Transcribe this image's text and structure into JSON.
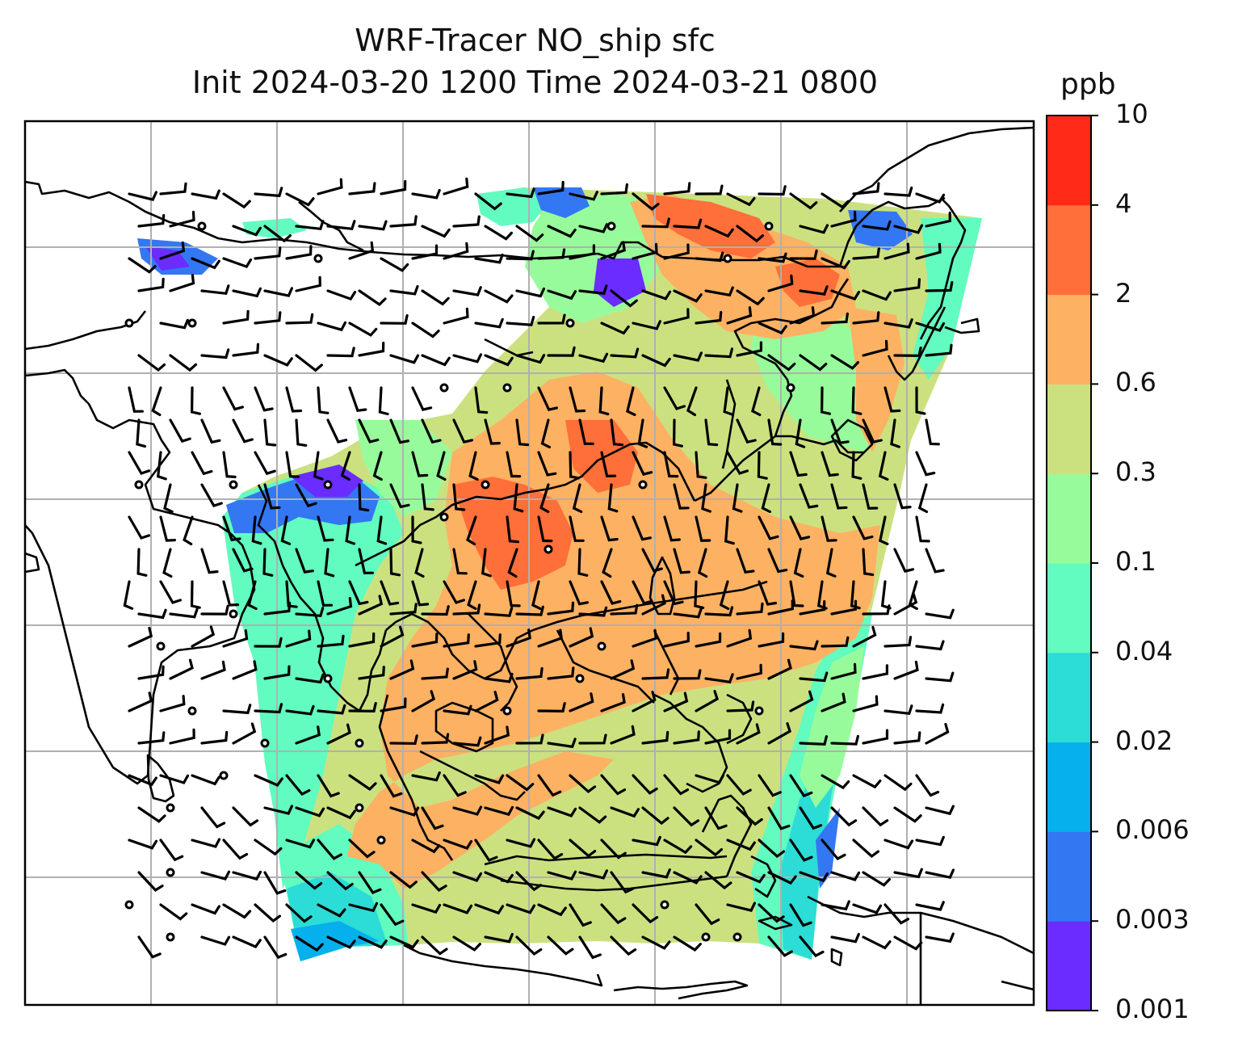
{
  "title": {
    "line1": "WRF-Tracer NO_ship sfc",
    "line2": "Init 2024-03-20 1200 Time 2024-03-21 0800"
  },
  "colorbar": {
    "unit": "ppb",
    "tick_labels": [
      "0.001",
      "0.003",
      "0.006",
      "0.02",
      "0.04",
      "0.1",
      "0.3",
      "0.6",
      "2",
      "4",
      "10"
    ],
    "colors": [
      "#6a2cff",
      "#3477f3",
      "#06b0ec",
      "#2cdcd6",
      "#62fbc0",
      "#98fb9b",
      "#cbe180",
      "#fdb163",
      "#fe6f3a",
      "#ff2a18"
    ]
  },
  "map": {
    "gridlines": true,
    "coastline_color": "#000000",
    "grid_color": "#b0b0b0",
    "overlay": "wind barbs"
  }
}
